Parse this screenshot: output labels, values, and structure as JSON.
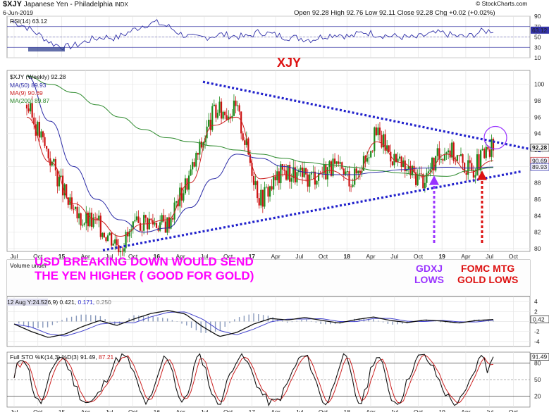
{
  "header": {
    "symbol": "$XJY",
    "name": "Japanese Yen - Philadelphia",
    "exchange": "INDX",
    "date": "6-Jun-2019",
    "ohlc": "Open 92.28  High 92.76  Low 92.11  Close 92.28  Chg +0.02 (+0.02%)",
    "copyright": "© StockCharts.com"
  },
  "rsi": {
    "label": "RSI(14) 63.12",
    "ticks": [
      "90",
      "70",
      "50",
      "30",
      "10"
    ],
    "value_tag": "63.12"
  },
  "price": {
    "legend_title": "$XJY (Weekly) 92.28",
    "legend_items": [
      {
        "label": "MA(50) 89.93",
        "color": "#2d2da8"
      },
      {
        "label": "MA(9) 90.69",
        "color": "#cc2222"
      },
      {
        "label": "MA(200) 89.87",
        "color": "#2e8b2e"
      }
    ],
    "ticks": [
      "100",
      "98",
      "96",
      "94",
      "92",
      "90",
      "88",
      "86",
      "84",
      "82",
      "80"
    ],
    "tags": [
      "92.28",
      "90.69",
      "89.93"
    ]
  },
  "volume": {
    "label": "Volume undef"
  },
  "macd": {
    "label_prefix": "12 Aug Y:24.52",
    "label_rest": "6,9) 0.421,",
    "val2": "0.171,",
    "val3": "0.250",
    "ticks": [
      "4",
      "2",
      "0",
      "-2",
      "-4"
    ],
    "value_tag": "0.42"
  },
  "sto": {
    "label_prefix": "Full STO %K(14,3) %D(3) 91.49,",
    "label_d": "87.21",
    "ticks": [
      "80",
      "50",
      "20"
    ],
    "value_tag": "91.49"
  },
  "x_axis": [
    "Jul",
    "Oct",
    "15",
    "Apr",
    "Jul",
    "Oct",
    "16",
    "Apr",
    "Jul",
    "Oct",
    "17",
    "Apr",
    "Jul",
    "Oct",
    "18",
    "Apr",
    "Jul",
    "Oct",
    "19",
    "Apr",
    "Jul",
    "Oct"
  ],
  "annotations": {
    "xjy": "XJY",
    "main_line1": "USD BREAKING DOWN WOULD SEND",
    "main_line2": "THE YEN HIGHER  ( GOOD FOR GOLD)",
    "gdxj_line1": "GDXJ",
    "gdxj_line2": "LOWS",
    "fomc_line1": "FOMC MTG",
    "fomc_line2": "GOLD LOWS"
  },
  "colors": {
    "candle_up": "#1a8a1a",
    "candle_down": "#cc1111",
    "trendline": "#2222cc",
    "annotation_magenta": "#ff00ff",
    "annotation_red": "#dd1111",
    "annotation_purple": "#9933ff",
    "panel_bg_alt": "#f2f2f2"
  },
  "chart_data": {
    "type": "line",
    "title": "$XJY Japanese Yen - Philadelphia INDX",
    "xlabel": "",
    "ylabel": "",
    "ylim": [
      79,
      101
    ],
    "x": [
      "Jul-14",
      "Oct-14",
      "Jan-15",
      "Apr-15",
      "Jul-15",
      "Oct-15",
      "Jan-16",
      "Apr-16",
      "Jul-16",
      "Oct-16",
      "Jan-17",
      "Apr-17",
      "Jul-17",
      "Oct-17",
      "Jan-18",
      "Apr-18",
      "Jul-18",
      "Oct-18",
      "Jan-19",
      "Apr-19",
      "Jun-19"
    ],
    "series": [
      {
        "name": "$XJY (Weekly)",
        "values": [
          97.5,
          91.0,
          84.0,
          83.0,
          80.5,
          83.5,
          83.0,
          89.0,
          96.5,
          97.0,
          86.0,
          89.5,
          88.5,
          90.0,
          88.5,
          94.0,
          90.0,
          88.5,
          92.5,
          89.5,
          92.28
        ]
      },
      {
        "name": "MA(50)",
        "values": [
          101,
          95.5,
          90.0,
          86.0,
          83.5,
          82.0,
          82.5,
          85.0,
          88.5,
          91.5,
          91.0,
          90.0,
          89.3,
          89.0,
          89.0,
          89.3,
          89.6,
          89.8,
          89.9,
          89.8,
          89.93
        ]
      },
      {
        "name": "MA(9)",
        "values": [
          96.0,
          90.5,
          85.5,
          83.5,
          81.5,
          83.0,
          83.5,
          88.0,
          95.0,
          96.0,
          88.5,
          89.0,
          88.3,
          89.5,
          88.3,
          93.0,
          90.5,
          88.8,
          91.5,
          89.3,
          90.69
        ]
      },
      {
        "name": "MA(200)",
        "values": [
          101,
          100,
          99,
          97.5,
          96,
          94.5,
          93.5,
          93,
          92.5,
          92,
          91.5,
          91,
          90.5,
          90.2,
          89.9,
          89.5,
          89.2,
          88.9,
          88.8,
          89.5,
          89.87
        ]
      }
    ],
    "rsi": {
      "label": "RSI(14)",
      "last": 63.12,
      "ylim": [
        10,
        90
      ]
    },
    "macd": {
      "last": 0.421,
      "signal": 0.171,
      "hist": 0.25
    },
    "full_sto": {
      "k": 91.49,
      "d": 87.21,
      "ylim": [
        0,
        100
      ]
    }
  }
}
